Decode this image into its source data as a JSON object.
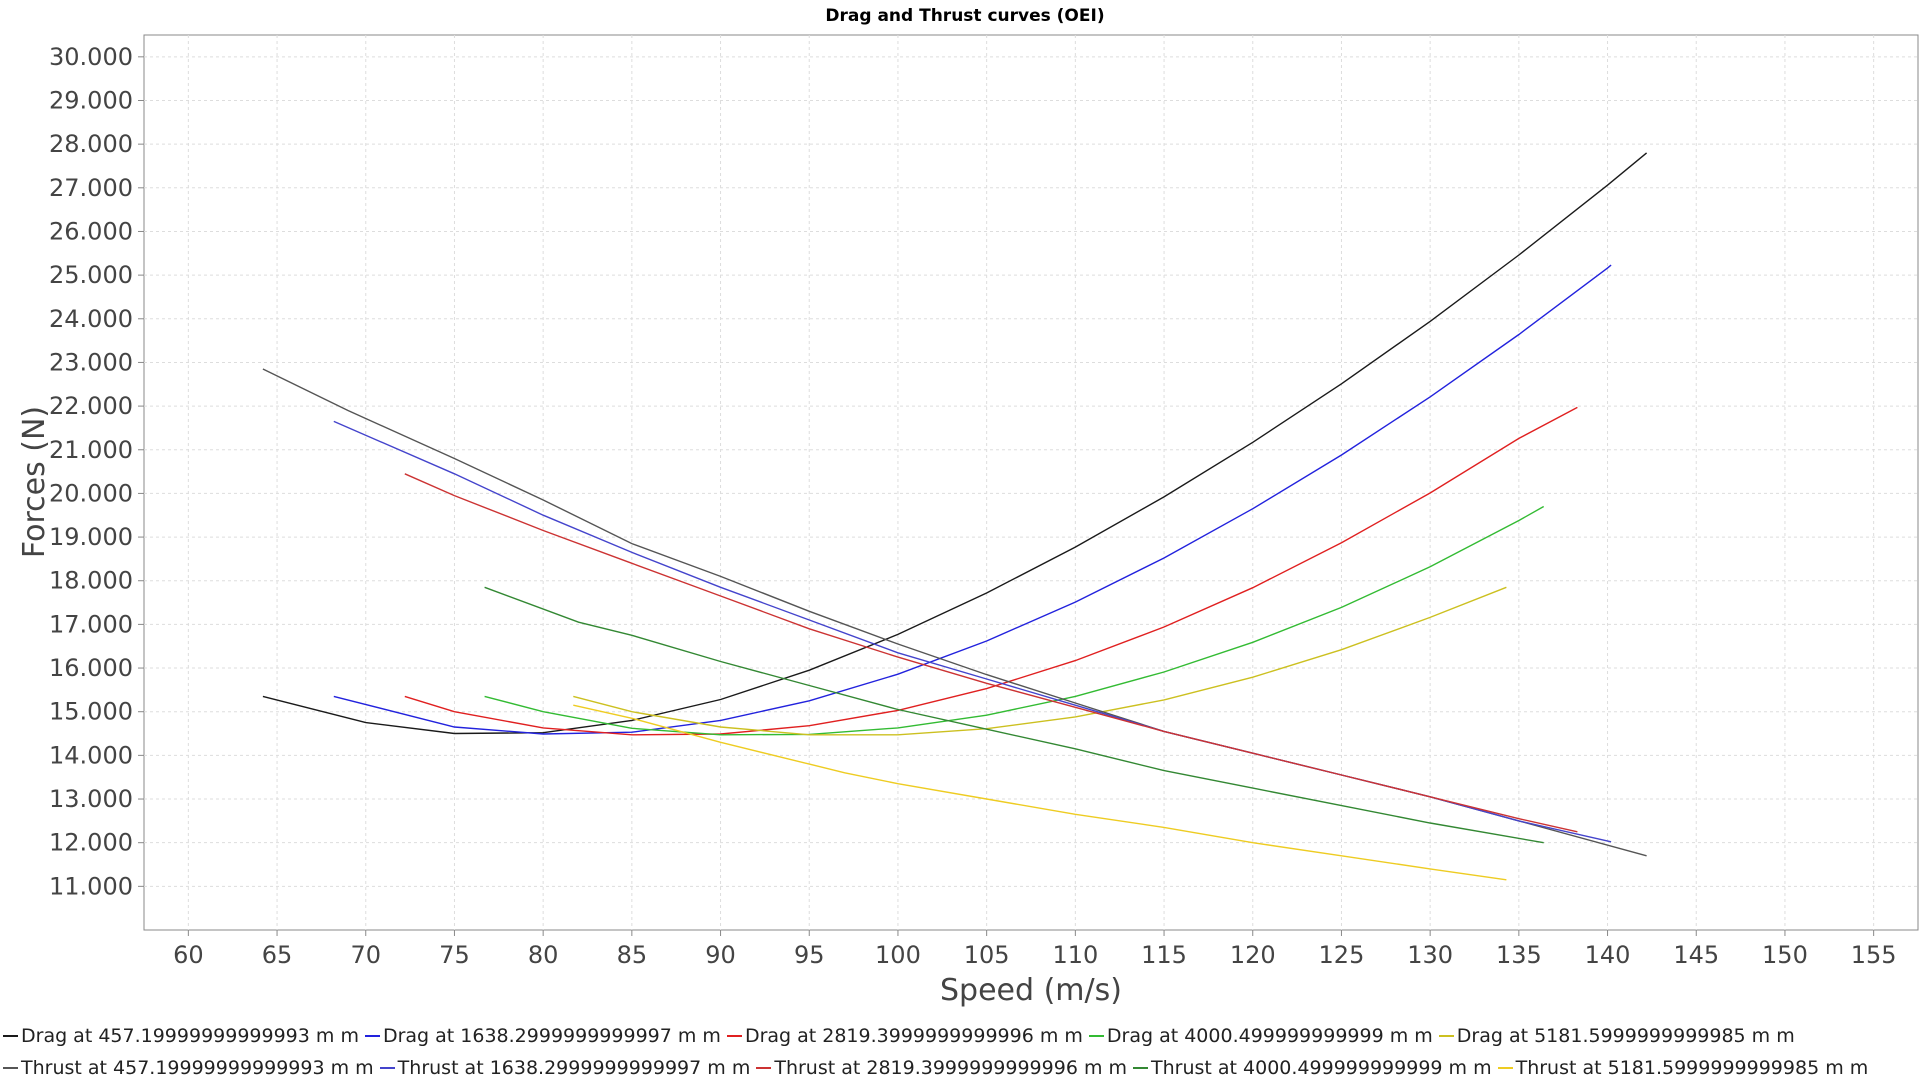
{
  "chart_data": {
    "type": "line",
    "title": "Drag and Thrust curves (OEI)",
    "xlabel": "Speed (m/s)",
    "ylabel": "Forces (N)",
    "xlim": [
      57.5,
      157.5
    ],
    "ylim": [
      10000,
      30500
    ],
    "xticks": [
      "60",
      "65",
      "70",
      "75",
      "80",
      "85",
      "90",
      "95",
      "100",
      "105",
      "110",
      "115",
      "120",
      "125",
      "130",
      "135",
      "140",
      "145",
      "150",
      "155"
    ],
    "yticks": [
      "11.000",
      "12.000",
      "13.000",
      "14.000",
      "15.000",
      "16.000",
      "17.000",
      "18.000",
      "19.000",
      "20.000",
      "21.000",
      "22.000",
      "23.000",
      "24.000",
      "25.000",
      "26.000",
      "27.000",
      "28.000",
      "29.000",
      "30.000"
    ],
    "grid": true,
    "legend_position": "bottom",
    "series": [
      {
        "name": "Drag at 457.19999999999993 m m",
        "color": "#1a1a1a",
        "x": [
          64.2,
          70,
          75,
          80,
          85,
          90,
          95,
          100,
          105,
          110,
          115,
          120,
          125,
          130,
          135,
          140,
          142.2
        ],
        "y": [
          15350,
          14750,
          14500,
          14520,
          14800,
          15280,
          15950,
          16770,
          17720,
          18770,
          19920,
          21170,
          22510,
          23940,
          25460,
          27060,
          27800
        ]
      },
      {
        "name": "Drag at 1638.2999999999997 m m",
        "color": "#2222dd",
        "x": [
          68.2,
          75,
          80,
          85,
          90,
          95,
          100,
          105,
          110,
          115,
          120,
          125,
          130,
          135,
          140,
          140.2
        ],
        "y": [
          15350,
          14650,
          14490,
          14530,
          14800,
          15250,
          15860,
          16620,
          17510,
          18520,
          19650,
          20880,
          22210,
          23640,
          25160,
          25230
        ]
      },
      {
        "name": "Drag at 2819.3999999999996 m m",
        "color": "#e02020",
        "x": [
          72.2,
          75,
          80,
          85,
          90,
          95,
          100,
          105,
          110,
          115,
          120,
          125,
          130,
          135,
          138.3
        ],
        "y": [
          15350,
          15000,
          14630,
          14470,
          14490,
          14680,
          15030,
          15530,
          16170,
          16940,
          17840,
          18870,
          20010,
          21260,
          21970
        ]
      },
      {
        "name": "Drag at 4000.499999999999 m m",
        "color": "#33bb33",
        "x": [
          76.7,
          80,
          85,
          90,
          95,
          100,
          105,
          110,
          115,
          120,
          125,
          130,
          135,
          136.4
        ],
        "y": [
          15350,
          15000,
          14620,
          14470,
          14480,
          14630,
          14920,
          15350,
          15910,
          16590,
          17390,
          18320,
          19380,
          19700
        ]
      },
      {
        "name": "Drag at 5181.5999999999985 m m",
        "color": "#ccc020",
        "x": [
          81.7,
          85,
          90,
          95,
          100,
          105,
          110,
          115,
          120,
          125,
          130,
          134.3
        ],
        "y": [
          15350,
          15000,
          14650,
          14470,
          14470,
          14610,
          14880,
          15270,
          15790,
          16420,
          17160,
          17850
        ]
      },
      {
        "name": "Thrust at 457.19999999999993 m m",
        "color": "#555555",
        "x": [
          64.2,
          69,
          75,
          80,
          85,
          90,
          95,
          100,
          105,
          110,
          115,
          120,
          125,
          130,
          135,
          142.2
        ],
        "y": [
          22850,
          21900,
          20800,
          19850,
          18850,
          18100,
          17300,
          16550,
          15850,
          15200,
          14550,
          14050,
          13550,
          13050,
          12500,
          11700
        ]
      },
      {
        "name": "Thrust at 1638.2999999999997 m m",
        "color": "#4444cc",
        "x": [
          68.2,
          75,
          80,
          85,
          90,
          95,
          100,
          105,
          110,
          115,
          120,
          125,
          130,
          135,
          140.2
        ],
        "y": [
          21650,
          20450,
          19500,
          18650,
          17850,
          17100,
          16350,
          15750,
          15150,
          14550,
          14050,
          13550,
          13050,
          12500,
          12020
        ]
      },
      {
        "name": "Thrust at 2819.3999999999996 m m",
        "color": "#cc3333",
        "x": [
          72.2,
          75,
          80,
          85,
          90,
          95,
          100,
          105,
          110,
          115,
          120,
          125,
          130,
          135,
          138.3
        ],
        "y": [
          20450,
          19950,
          19150,
          18400,
          17650,
          16900,
          16250,
          15650,
          15100,
          14550,
          14050,
          13550,
          13050,
          12550,
          12250
        ]
      },
      {
        "name": "Thrust at 4000.499999999999 m m",
        "color": "#338833",
        "x": [
          76.7,
          82,
          85,
          90,
          95,
          100,
          105,
          110,
          115,
          120,
          125,
          130,
          136.4
        ],
        "y": [
          17850,
          17050,
          16750,
          16150,
          15600,
          15050,
          14600,
          14150,
          13650,
          13250,
          12850,
          12450,
          12000
        ]
      },
      {
        "name": "Thrust at 5181.5999999999985 m m",
        "color": "#eecc22",
        "x": [
          81.7,
          85,
          90,
          95,
          97,
          100,
          105,
          110,
          115,
          120,
          125,
          130,
          134.3
        ],
        "y": [
          15150,
          14850,
          14300,
          13800,
          13600,
          13350,
          13000,
          12650,
          12350,
          12000,
          11700,
          11400,
          11150
        ]
      }
    ]
  }
}
